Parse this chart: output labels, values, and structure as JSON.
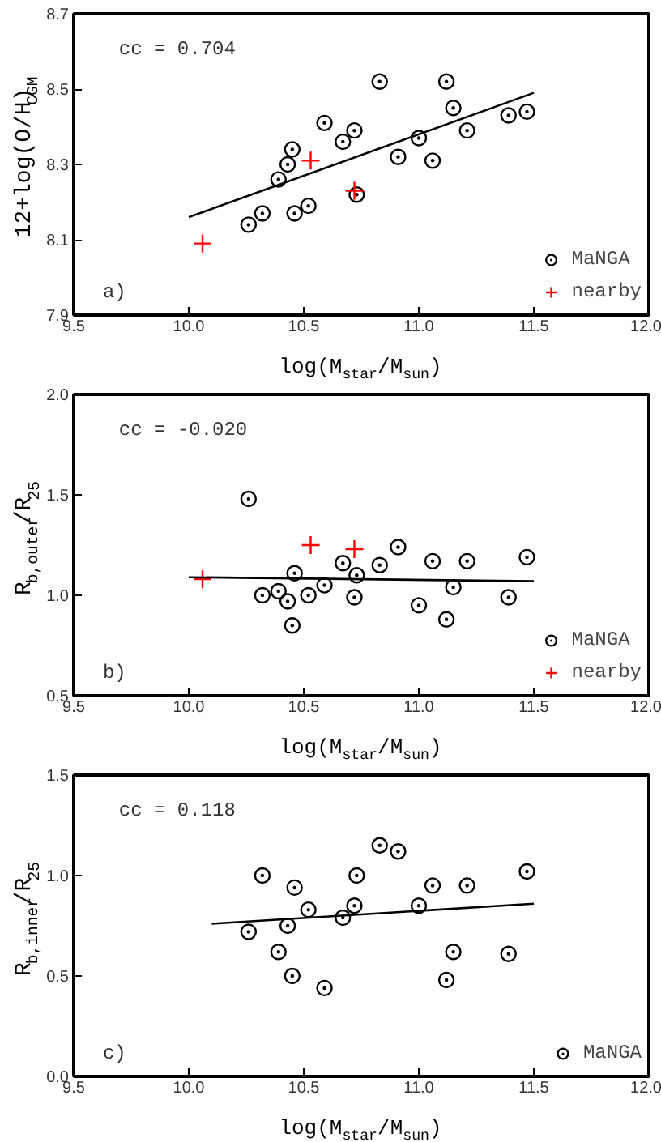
{
  "chart_data": [
    {
      "type": "scatter",
      "xlabel": "log(M$_{star}$/M$_{sun}$)",
      "ylabel": "12+log(O/H)$_{CGM}$",
      "annotations": [
        "cc = 0.704",
        "a)"
      ],
      "xlim": [
        9.5,
        12.0
      ],
      "ylim": [
        7.9,
        8.7
      ],
      "xticks": [
        9.5,
        {
          "value": 10,
          "label": "10.0"
        },
        10.5,
        {
          "value": 11,
          "label": "11.0"
        },
        11.5,
        {
          "value": 12,
          "label": "12.0"
        }
      ],
      "yticks": [
        7.9,
        8.1,
        8.3,
        8.5,
        8.7
      ],
      "legend": "bottom right",
      "series": [
        {
          "name": "MaNGA",
          "color": "#000000",
          "marker": "circle",
          "x": [
            10.26,
            10.32,
            10.39,
            10.43,
            10.45,
            10.46,
            10.52,
            10.59,
            10.67,
            10.72,
            10.73,
            10.83,
            10.91,
            11.0,
            11.06,
            11.12,
            11.15,
            11.21,
            11.39,
            11.47
          ],
          "values": [
            8.14,
            8.17,
            8.26,
            8.3,
            8.34,
            8.17,
            8.19,
            8.41,
            8.36,
            8.39,
            8.22,
            8.52,
            8.32,
            8.37,
            8.31,
            8.52,
            8.45,
            8.39,
            8.43,
            8.44
          ]
        },
        {
          "name": "nearby",
          "color": "#ff0000",
          "marker": "cross",
          "x": [
            10.06,
            10.53,
            10.72
          ],
          "values": [
            8.09,
            8.31,
            8.23
          ]
        },
        {
          "type": "line",
          "color": "#000000",
          "x": [
            10.0,
            11.5
          ],
          "values": [
            8.16,
            8.49
          ]
        }
      ]
    },
    {
      "type": "scatter",
      "xlabel": "log(M$_{star}$/M$_{sun}$)",
      "ylabel": "R$_{b,outer}$/R$_{25}$",
      "annotations": [
        "cc = -0.020",
        "b)"
      ],
      "xlim": [
        9.5,
        12.0
      ],
      "ylim": [
        0.5,
        2.0
      ],
      "xticks": [
        9.5,
        {
          "value": 10,
          "label": "10.0"
        },
        10.5,
        {
          "value": 11,
          "label": "11.0"
        },
        11.5,
        {
          "value": 12,
          "label": "12.0"
        }
      ],
      "yticks": [
        0.5,
        {
          "value": 1,
          "label": "1.0"
        },
        1.5,
        {
          "value": 2,
          "label": "2.0"
        }
      ],
      "legend": "bottom right",
      "series": [
        {
          "name": "MaNGA",
          "color": "#000000",
          "marker": "circle",
          "x": [
            10.26,
            10.32,
            10.39,
            10.43,
            10.45,
            10.46,
            10.52,
            10.59,
            10.67,
            10.72,
            10.73,
            10.83,
            10.91,
            11.0,
            11.06,
            11.12,
            11.15,
            11.21,
            11.39,
            11.47
          ],
          "values": [
            1.48,
            1.0,
            1.02,
            0.97,
            0.85,
            1.11,
            1.0,
            1.05,
            1.16,
            0.99,
            1.1,
            1.15,
            1.24,
            0.95,
            1.17,
            0.88,
            1.04,
            1.17,
            0.99,
            1.19
          ]
        },
        {
          "name": "nearby",
          "color": "#ff0000",
          "marker": "cross",
          "x": [
            10.06,
            10.53,
            10.72
          ],
          "values": [
            1.08,
            1.25,
            1.23
          ]
        },
        {
          "type": "line",
          "color": "#000000",
          "x": [
            10.0,
            11.5
          ],
          "values": [
            1.09,
            1.07
          ]
        }
      ]
    },
    {
      "type": "scatter",
      "xlabel": "log(M$_{star}$/M$_{sun}$)",
      "ylabel": "R$_{b,inner}$/R$_{25}$",
      "annotations": [
        "cc = 0.118",
        "c)"
      ],
      "xlim": [
        9.5,
        12.0
      ],
      "ylim": [
        0.0,
        1.5
      ],
      "xticks": [
        9.5,
        {
          "value": 10,
          "label": "10.0"
        },
        10.5,
        {
          "value": 11,
          "label": "11.0"
        },
        11.5,
        {
          "value": 12,
          "label": "12.0"
        }
      ],
      "yticks": [
        {
          "value": 0,
          "label": "0.0"
        },
        0.5,
        {
          "value": 1,
          "label": "1.0"
        },
        1.5
      ],
      "legend": "bottom right",
      "series": [
        {
          "name": "MaNGA",
          "color": "#000000",
          "marker": "circle",
          "x": [
            10.26,
            10.32,
            10.39,
            10.43,
            10.45,
            10.46,
            10.52,
            10.59,
            10.67,
            10.72,
            10.73,
            10.83,
            10.91,
            11.0,
            11.06,
            11.12,
            11.15,
            11.21,
            11.39,
            11.47
          ],
          "values": [
            0.72,
            1.0,
            0.62,
            0.75,
            0.5,
            0.94,
            0.83,
            0.44,
            0.79,
            0.85,
            1.0,
            1.15,
            1.12,
            0.85,
            0.95,
            0.48,
            0.62,
            0.95,
            0.61,
            1.02
          ]
        },
        {
          "type": "line",
          "color": "#000000",
          "x": [
            10.1,
            11.5
          ],
          "values": [
            0.76,
            0.86
          ]
        }
      ]
    }
  ]
}
